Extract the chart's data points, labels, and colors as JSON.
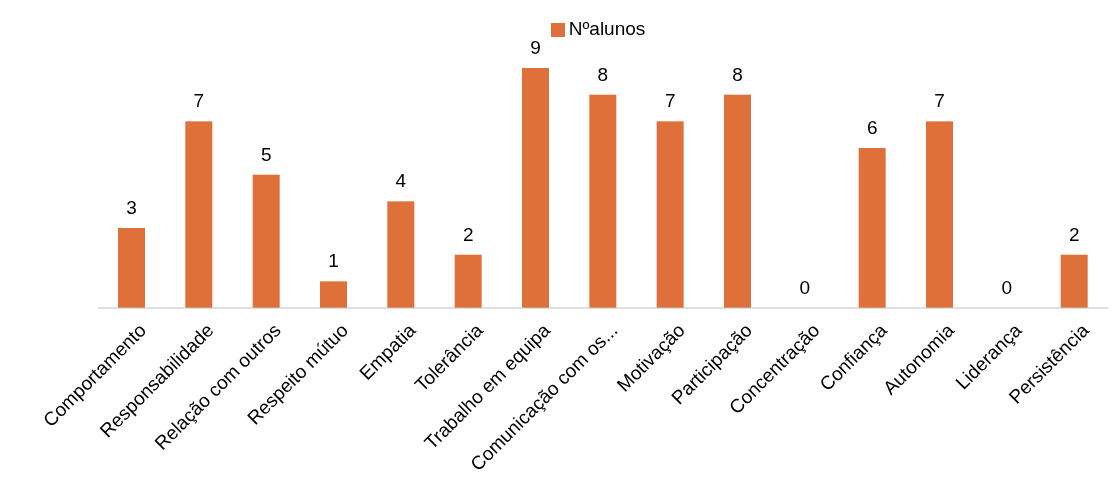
{
  "chart_data": {
    "type": "bar",
    "categories": [
      "Comportamento",
      "Responsabilidade",
      "Relação com outros",
      "Respeito mútuo",
      "Empatia",
      "Tolerância",
      "Trabalho em equipa",
      "Comunicação com os...",
      "Motivação",
      "Participação",
      "Concentração",
      "Confiança",
      "Autonomia",
      "Liderança",
      "Persistência"
    ],
    "series": [
      {
        "name": "Nºalunos",
        "color": "#e0703a",
        "values": [
          3,
          7,
          5,
          1,
          4,
          2,
          9,
          8,
          7,
          8,
          0,
          6,
          7,
          0,
          2
        ]
      }
    ],
    "data_labels": true,
    "legend": "top",
    "grid": false
  }
}
